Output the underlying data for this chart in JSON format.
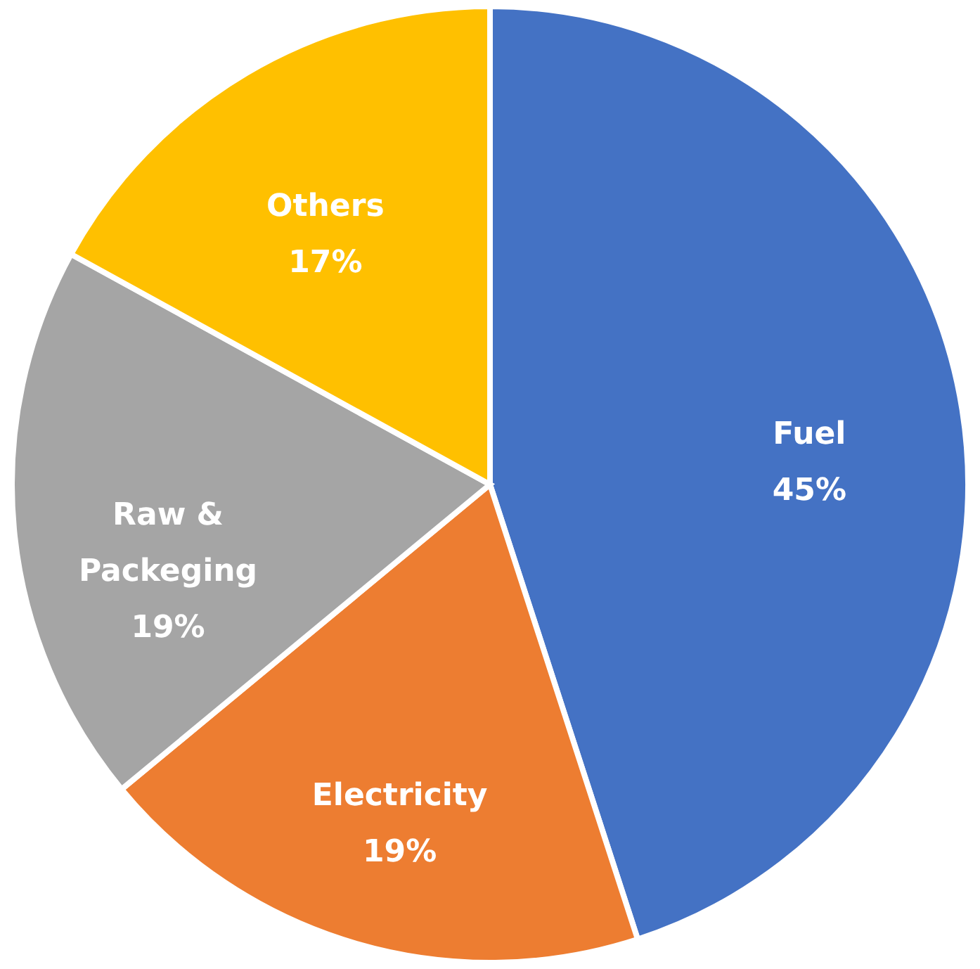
{
  "chart_data": {
    "type": "pie",
    "categories": [
      "Fuel",
      "Electricity",
      "Raw & Packeging",
      "Others"
    ],
    "values": [
      45,
      19,
      19,
      17
    ],
    "colors": [
      "#4472c4",
      "#ed7d31",
      "#a5a5a5",
      "#ffc000"
    ],
    "value_labels": [
      "45%",
      "19%",
      "19%",
      "17%"
    ],
    "legend": false
  }
}
